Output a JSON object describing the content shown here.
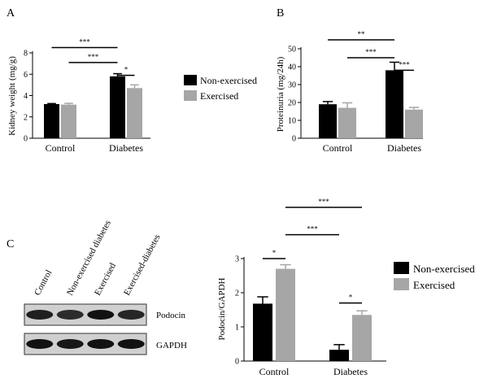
{
  "figure": {
    "panels": [
      "A",
      "B",
      "C"
    ]
  },
  "legend": {
    "series": [
      {
        "name": "Non-exercised",
        "color": "#000000"
      },
      {
        "name": "Exercised",
        "color": "#a6a6a6"
      }
    ]
  },
  "blot": {
    "lanes": [
      "Control",
      "Non-exercised diabetes",
      "Exercised",
      "Exercised-diabetes"
    ],
    "rows": [
      {
        "label": "Podocin",
        "band_intensity": [
          0.85,
          0.75,
          0.95,
          0.8
        ]
      },
      {
        "label": "GAPDH",
        "band_intensity": [
          0.95,
          0.9,
          0.95,
          0.95
        ]
      }
    ]
  },
  "chart_data": [
    {
      "panel": "A",
      "type": "bar",
      "ylabel": "Kidney weight (mg/g)",
      "ylim": [
        0,
        8
      ],
      "yticks": [
        0,
        2,
        4,
        6,
        8
      ],
      "categories": [
        "Control",
        "Diabetes"
      ],
      "series": [
        {
          "name": "Non-exercised",
          "values": [
            3.2,
            5.8
          ],
          "errors": [
            0.05,
            0.25
          ]
        },
        {
          "name": "Exercised",
          "values": [
            3.15,
            4.7
          ],
          "errors": [
            0.12,
            0.3
          ]
        }
      ],
      "significance": [
        {
          "label": "***",
          "from": [
            0,
            0
          ],
          "to": [
            1,
            0
          ],
          "y": 8.5
        },
        {
          "label": "***",
          "from": [
            0,
            1
          ],
          "to": [
            1,
            0
          ],
          "y": 7.1
        },
        {
          "label": "*",
          "from": [
            1,
            0
          ],
          "to": [
            1,
            1
          ],
          "y": 5.9
        }
      ]
    },
    {
      "panel": "B",
      "type": "bar",
      "ylabel": "Proteinuria (mg/24h)",
      "ylim": [
        0,
        50
      ],
      "yticks": [
        0,
        10,
        20,
        30,
        40,
        50
      ],
      "categories": [
        "Control",
        "Diabetes"
      ],
      "series": [
        {
          "name": "Non-exercised",
          "values": [
            19,
            38
          ],
          "errors": [
            1.5,
            4.5
          ]
        },
        {
          "name": "Exercised",
          "values": [
            17,
            16
          ],
          "errors": [
            2.8,
            1.2
          ]
        }
      ],
      "significance": [
        {
          "label": "**",
          "from": [
            0,
            0
          ],
          "to": [
            1,
            0
          ],
          "y": 55
        },
        {
          "label": "***",
          "from": [
            0,
            1
          ],
          "to": [
            1,
            0
          ],
          "y": 45
        },
        {
          "label": "***",
          "from": [
            1,
            0
          ],
          "to": [
            1,
            1
          ],
          "y": 38
        }
      ]
    },
    {
      "panel": "C",
      "type": "bar",
      "ylabel": "Podocin/GAPDH",
      "ylim": [
        0,
        3
      ],
      "yticks": [
        0,
        1,
        2,
        3
      ],
      "categories": [
        "Control",
        "Diabetes"
      ],
      "series": [
        {
          "name": "Non-exercised",
          "values": [
            1.68,
            0.33
          ],
          "errors": [
            0.2,
            0.15
          ]
        },
        {
          "name": "Exercised",
          "values": [
            2.7,
            1.35
          ],
          "errors": [
            0.12,
            0.12
          ]
        }
      ],
      "significance": [
        {
          "label": "***",
          "from": [
            0,
            1
          ],
          "to": [
            1,
            1
          ],
          "y": 4.5
        },
        {
          "label": "***",
          "from": [
            0,
            1
          ],
          "to": [
            1,
            0
          ],
          "y": 3.7
        },
        {
          "label": "*",
          "from": [
            0,
            0
          ],
          "to": [
            0,
            1
          ],
          "y": 3.0
        },
        {
          "label": "*",
          "from": [
            1,
            0
          ],
          "to": [
            1,
            1
          ],
          "y": 1.7
        }
      ]
    }
  ]
}
